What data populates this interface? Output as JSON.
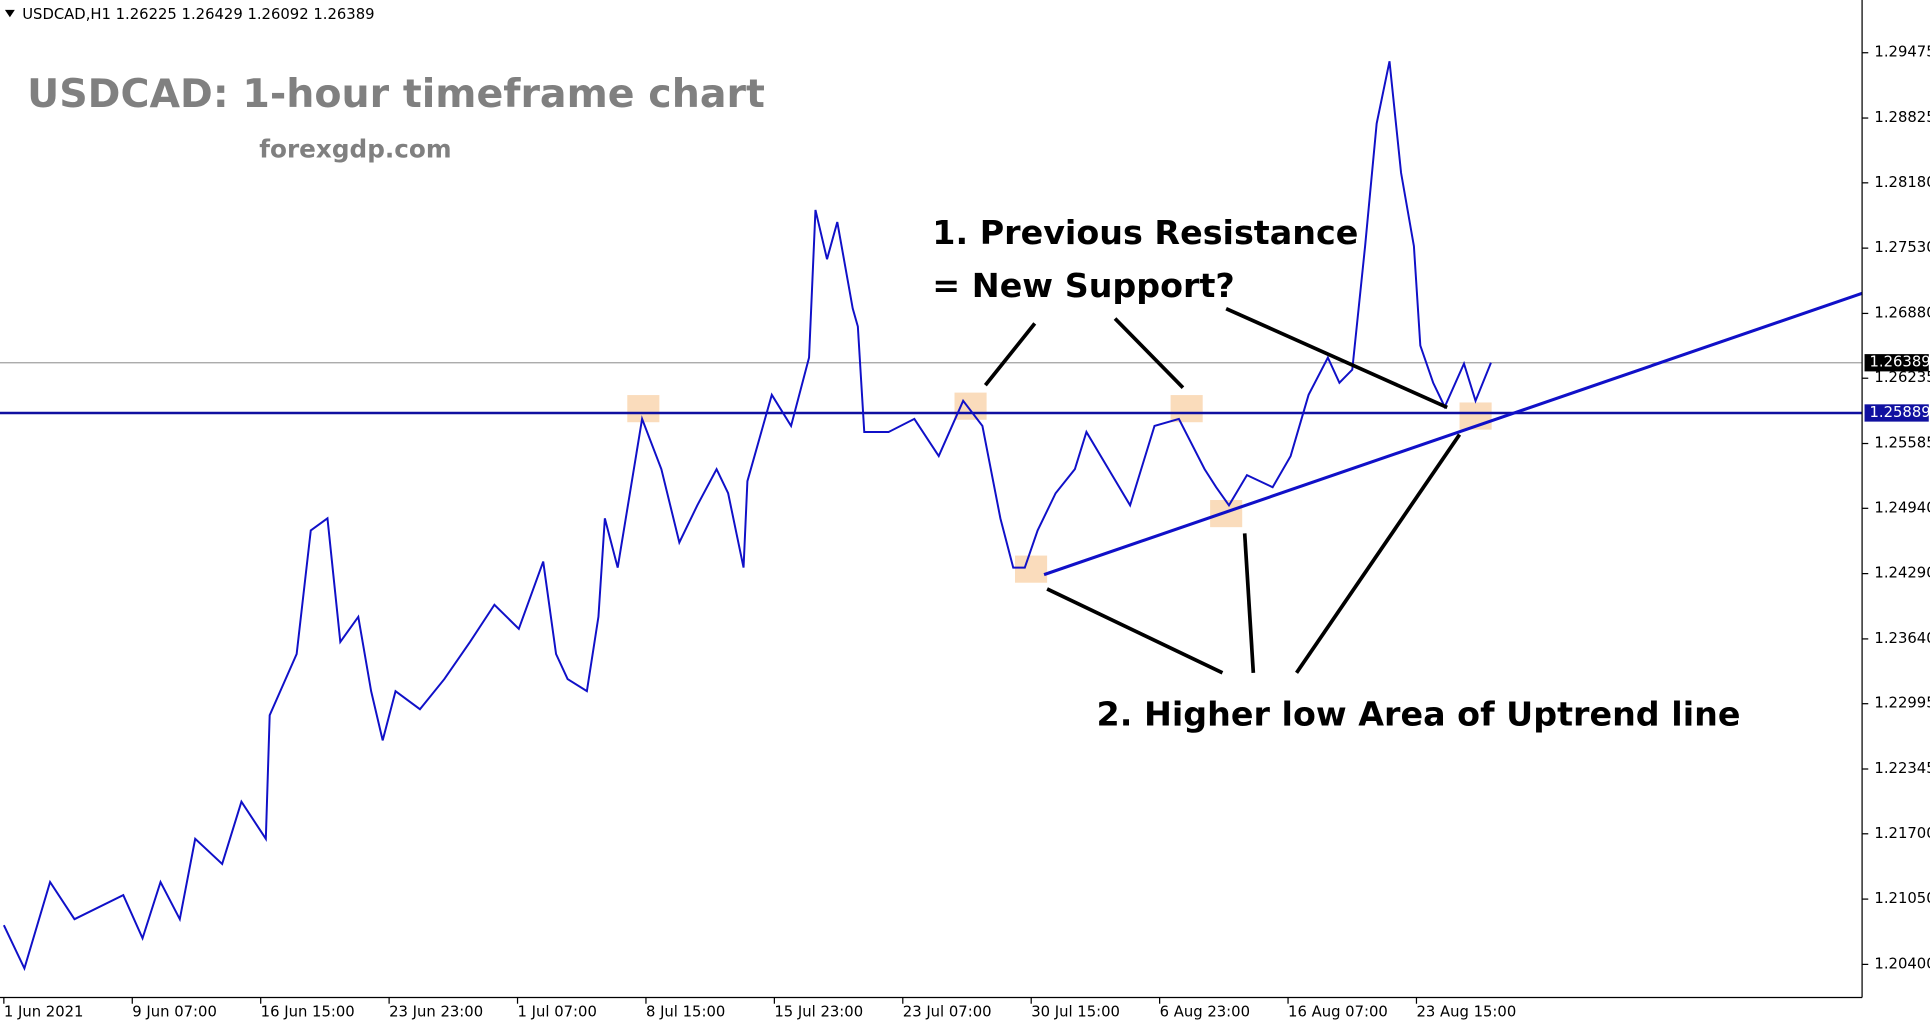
{
  "chart_data": {
    "type": "line",
    "header": "USDCAD,H1  1.26225 1.26429 1.26092 1.26389",
    "title": "USDCAD: 1-hour timeframe chart",
    "subtitle": "forexgdp.com",
    "annotations": [
      "1. Previous Resistance",
      "= New Support?",
      "2. Higher low Area of Uptrend line"
    ],
    "xlim": [
      -0.03,
      14.47
    ],
    "xticks": [
      {
        "value": 0,
        "label": "1 Jun 2021"
      },
      {
        "value": 1,
        "label": "9 Jun 07:00"
      },
      {
        "value": 2,
        "label": "16 Jun 15:00"
      },
      {
        "value": 3,
        "label": "23 Jun 23:00"
      },
      {
        "value": 4,
        "label": "1 Jul 07:00"
      },
      {
        "value": 5,
        "label": "8 Jul 15:00"
      },
      {
        "value": 6,
        "label": "15 Jul 23:00"
      },
      {
        "value": 7,
        "label": "23 Jul 07:00"
      },
      {
        "value": 8,
        "label": "30 Jul 15:00"
      },
      {
        "value": 9,
        "label": "6 Aug 23:00"
      },
      {
        "value": 10,
        "label": "16 Aug 07:00"
      },
      {
        "value": 11,
        "label": "23 Aug 15:00"
      }
    ],
    "ylim": [
      1.2007,
      1.3
    ],
    "yticks": [
      1.29475,
      1.28825,
      {
        "value": 1.2818,
        "label": "1.28180"
      },
      {
        "value": 1.2753,
        "label": "1.27530"
      },
      {
        "value": 1.2688,
        "label": "1.26880"
      },
      1.26235,
      1.25585,
      {
        "value": 1.2494,
        "label": "1.24940"
      },
      {
        "value": 1.2429,
        "label": "1.24290"
      },
      {
        "value": 1.2364,
        "label": "1.23640"
      },
      1.22995,
      1.22345,
      {
        "value": 1.217,
        "label": "1.21700"
      },
      {
        "value": 1.2105,
        "label": "1.21050"
      },
      {
        "value": 1.204,
        "label": "1.20400"
      }
    ],
    "series": [
      {
        "name": "USDCAD",
        "color": "#1010c8",
        "x": [
          0,
          0.16,
          0.36,
          0.55,
          0.93,
          1.08,
          1.22,
          1.37,
          1.49,
          1.7,
          1.85,
          2.04,
          2.07,
          2.28,
          2.39,
          2.52,
          2.62,
          2.76,
          2.86,
          2.95,
          3.05,
          3.24,
          3.43,
          3.63,
          3.82,
          4.01,
          4.2,
          4.3,
          4.39,
          4.54,
          4.63,
          4.68,
          4.78,
          4.97,
          5.12,
          5.26,
          5.4,
          5.55,
          5.64,
          5.76,
          5.79,
          5.98,
          6.13,
          6.27,
          6.32,
          6.41,
          6.49,
          6.61,
          6.65,
          6.7,
          6.89,
          7.09,
          7.28,
          7.47,
          7.62,
          7.76,
          7.86,
          7.95,
          8.05,
          8.19,
          8.34,
          8.43,
          8.63,
          8.77,
          8.96,
          9.15,
          9.35,
          9.44,
          9.54,
          9.68,
          9.88,
          10.02,
          10.16,
          10.31,
          10.4,
          10.5,
          10.6,
          10.69,
          10.79,
          10.88,
          10.98,
          11.03,
          11.13,
          11.22,
          11.37,
          11.46,
          11.58
        ],
        "values": [
          1.2079,
          1.2036,
          1.2122,
          1.2085,
          1.2109,
          1.2066,
          1.2122,
          1.2085,
          1.2165,
          1.214,
          1.2202,
          1.2165,
          1.2288,
          1.2349,
          1.2472,
          1.2484,
          1.2361,
          1.2386,
          1.2312,
          1.2263,
          1.2312,
          1.2294,
          1.2324,
          1.2361,
          1.2398,
          1.2374,
          1.2441,
          1.2349,
          1.2324,
          1.2312,
          1.2386,
          1.2484,
          1.2435,
          1.2583,
          1.2533,
          1.246,
          1.2497,
          1.2533,
          1.2509,
          1.2435,
          1.2521,
          1.2607,
          1.2576,
          1.2644,
          1.2791,
          1.2742,
          1.2779,
          1.2693,
          1.2675,
          1.257,
          1.257,
          1.2583,
          1.2546,
          1.2601,
          1.2576,
          1.2484,
          1.2435,
          1.2435,
          1.2472,
          1.2509,
          1.2533,
          1.257,
          1.2527,
          1.2497,
          1.2576,
          1.2583,
          1.2533,
          1.2515,
          1.2497,
          1.2527,
          1.2515,
          1.2546,
          1.2607,
          1.2644,
          1.2619,
          1.2632,
          1.2755,
          1.2877,
          1.2939,
          1.2828,
          1.2755,
          1.2656,
          1.2619,
          1.2595,
          1.2638,
          1.2601,
          1.26389
        ]
      }
    ],
    "levels": [
      {
        "value": 1.26389,
        "color": "#a0a0a0",
        "tag_color": "#000000"
      },
      {
        "value": 1.25889,
        "color": "#1010a0",
        "tag_color": "#1010a0"
      }
    ],
    "trendline": {
      "x": [
        8.1,
        14.47
      ],
      "values": [
        1.2428,
        1.2708
      ],
      "color": "#1010c8"
    }
  }
}
